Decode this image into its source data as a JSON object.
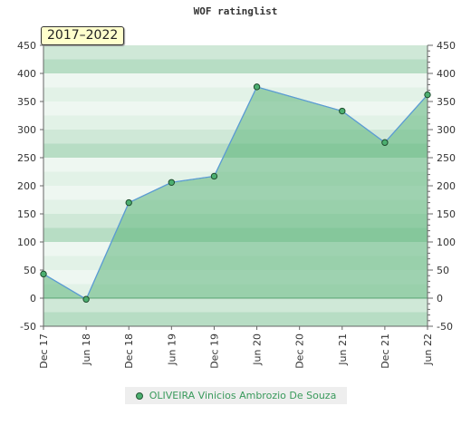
{
  "chart_data": {
    "type": "area",
    "title": "WOF ratinglist",
    "range_label": "2017–2022",
    "x_categories": [
      "Dec 17",
      "Jun 18",
      "Dec 18",
      "Jun 19",
      "Dec 19",
      "Jun 20",
      "Dec 20",
      "Jun 21",
      "Dec 21",
      "Jun 22"
    ],
    "series": [
      {
        "name": "OLIVEIRA Vinicios Ambrozio De Souza",
        "points": [
          {
            "x": "Dec 17",
            "y": 43
          },
          {
            "x": "Jun 18",
            "y": -2
          },
          {
            "x": "Dec 18",
            "y": 170
          },
          {
            "x": "Jun 19",
            "y": 206
          },
          {
            "x": "Dec 19",
            "y": 217
          },
          {
            "x": "Jun 20",
            "y": 376
          },
          {
            "x": "Jun 21",
            "y": 333
          },
          {
            "x": "Dec 21",
            "y": 277
          },
          {
            "x": "Jun 22",
            "y": 362
          }
        ]
      }
    ],
    "y_ticks": [
      -50,
      0,
      50,
      100,
      150,
      200,
      250,
      300,
      350,
      400,
      450
    ],
    "ylim": [
      -50,
      450
    ],
    "grid": true,
    "legend_position": "bottom",
    "colors": {
      "line": "#5b9bd5",
      "fill": "#5cb47a",
      "marker": "#4caf70",
      "band_dark": "#b7ddc4",
      "band_light": "#eef7f1"
    }
  }
}
